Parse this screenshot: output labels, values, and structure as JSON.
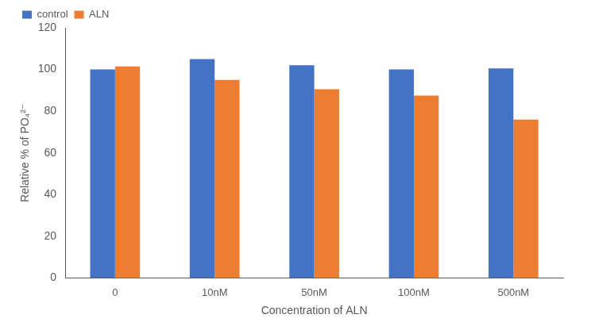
{
  "chart_data": {
    "type": "bar",
    "x_label": "Concentration of ALN",
    "y_label": "Relative % of PO₄²⁻",
    "categories": [
      "0",
      "10nM",
      "50nM",
      "100nM",
      "500nM"
    ],
    "series": [
      {
        "name": "control",
        "color": "#4472c4",
        "values": [
          100,
          105,
          102,
          100,
          100.5
        ]
      },
      {
        "name": "ALN",
        "color": "#ed7d31",
        "values": [
          101.5,
          95,
          90.5,
          87.5,
          76
        ]
      }
    ],
    "ylim": [
      0,
      120
    ],
    "yticks": [
      0,
      20,
      40,
      60,
      80,
      100,
      120
    ],
    "grid": false,
    "legend": "top"
  }
}
